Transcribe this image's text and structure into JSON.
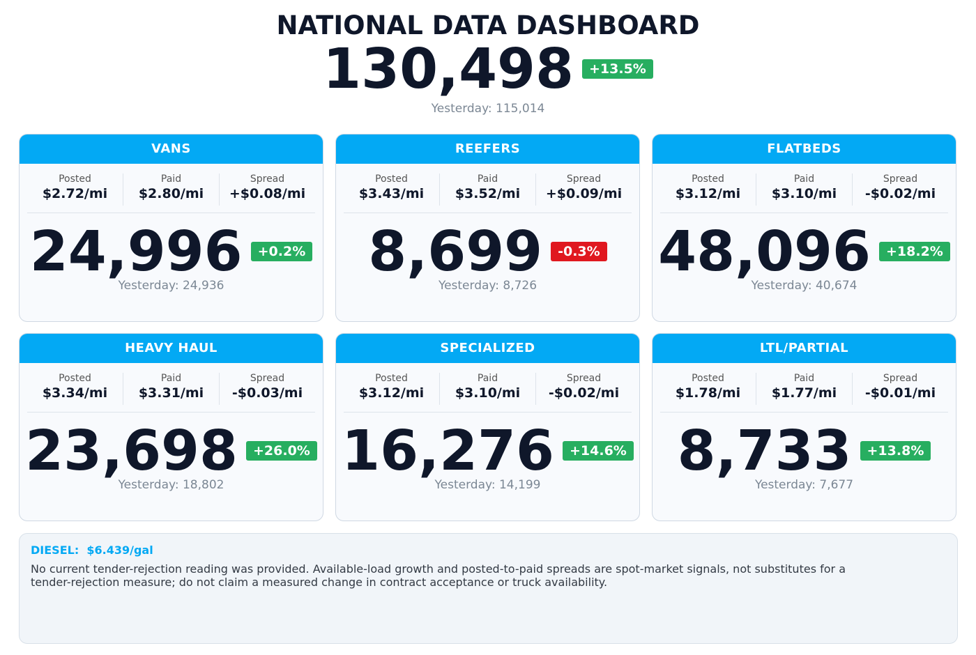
{
  "header": {
    "title": "NATIONAL DATA DASHBOARD",
    "total": "130,498",
    "change": "+13.5%",
    "yesterday": "Yesterday: 115,014"
  },
  "cards": [
    {
      "name": "VANS",
      "metrics": [
        {
          "label": "Posted",
          "value": "$2.72/mi"
        },
        {
          "label": "Paid",
          "value": "$2.80/mi"
        },
        {
          "label": "Spread",
          "value": "+$0.08/mi"
        }
      ],
      "loads": "24,996",
      "change": "+0.2%",
      "yesterday": "Yesterday: 24,936"
    },
    {
      "name": "REEFERS",
      "metrics": [
        {
          "label": "Posted",
          "value": "$3.43/mi"
        },
        {
          "label": "Paid",
          "value": "$3.52/mi"
        },
        {
          "label": "Spread",
          "value": "+$0.09/mi"
        }
      ],
      "loads": "8,699",
      "change": "-0.3%",
      "yesterday": "Yesterday: 8,726"
    },
    {
      "name": "FLATBEDS",
      "metrics": [
        {
          "label": "Posted",
          "value": "$3.12/mi"
        },
        {
          "label": "Paid",
          "value": "$3.10/mi"
        },
        {
          "label": "Spread",
          "value": "-$0.02/mi"
        }
      ],
      "loads": "48,096",
      "change": "+18.2%",
      "yesterday": "Yesterday: 40,674"
    },
    {
      "name": "HEAVY HAUL",
      "metrics": [
        {
          "label": "Posted",
          "value": "$3.34/mi"
        },
        {
          "label": "Paid",
          "value": "$3.31/mi"
        },
        {
          "label": "Spread",
          "value": "-$0.03/mi"
        }
      ],
      "loads": "23,698",
      "change": "+26.0%",
      "yesterday": "Yesterday: 18,802"
    },
    {
      "name": "SPECIALIZED",
      "metrics": [
        {
          "label": "Posted",
          "value": "$3.12/mi"
        },
        {
          "label": "Paid",
          "value": "$3.10/mi"
        },
        {
          "label": "Spread",
          "value": "-$0.02/mi"
        }
      ],
      "loads": "16,276",
      "change": "+14.6%",
      "yesterday": "Yesterday: 14,199"
    },
    {
      "name": "LTL/PARTIAL",
      "metrics": [
        {
          "label": "Posted",
          "value": "$1.78/mi"
        },
        {
          "label": "Paid",
          "value": "$1.77/mi"
        },
        {
          "label": "Spread",
          "value": "-$0.01/mi"
        }
      ],
      "loads": "8,733",
      "change": "+13.8%",
      "yesterday": "Yesterday: 7,677"
    }
  ],
  "note": {
    "diesel_label": "DIESEL:",
    "diesel_value": "$6.439/gal",
    "text": "No current tender-rejection reading was provided. Available-load growth and posted-to-paid spreads are spot-market signals, not substitutes for a tender-rejection measure; do not claim a measured change in contract acceptance or truck availability."
  }
}
